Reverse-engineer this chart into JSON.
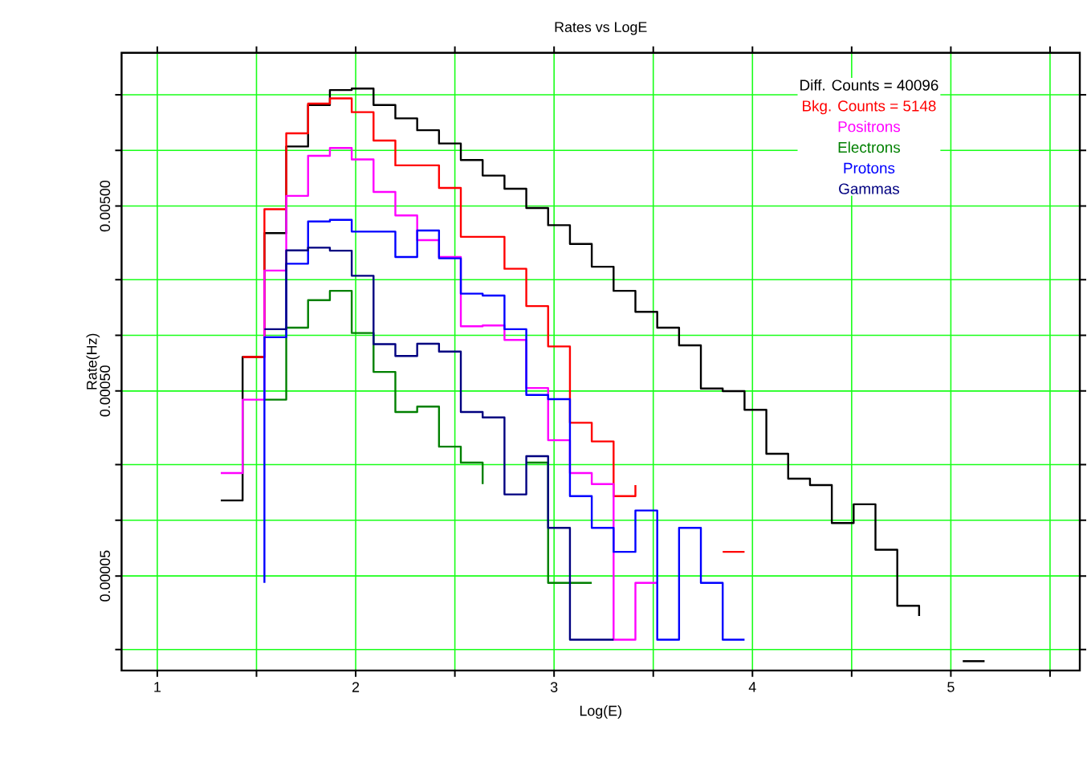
{
  "chart_data": {
    "type": "step",
    "title": "Rates vs LogE",
    "xlabel": "Log(E)",
    "ylabel": "Rate(Hz)",
    "log": "y",
    "grid": true,
    "legend": "top right",
    "xlim": [
      0.82,
      5.65
    ],
    "ylim": [
      1.54e-05,
      0.0337
    ],
    "xticks": [
      {
        "value": 1,
        "label": "1"
      },
      {
        "value": 1.5,
        "label": null
      },
      {
        "value": 2,
        "label": "2"
      },
      {
        "value": 2.5,
        "label": null
      },
      {
        "value": 3,
        "label": "3"
      },
      {
        "value": 3.5,
        "label": null
      },
      {
        "value": 4,
        "label": "4"
      },
      {
        "value": 4.5,
        "label": null
      },
      {
        "value": 5,
        "label": "5"
      },
      {
        "value": 5.5,
        "label": null
      }
    ],
    "yticks": [
      {
        "value": 2e-05,
        "label": null
      },
      {
        "value": 5e-05,
        "label": "0.00005"
      },
      {
        "value": 0.0001,
        "label": null
      },
      {
        "value": 0.0002,
        "label": null
      },
      {
        "value": 0.0005,
        "label": "0.00050"
      },
      {
        "value": 0.001,
        "label": null
      },
      {
        "value": 0.002,
        "label": null
      },
      {
        "value": 0.005,
        "label": "0.00500"
      },
      {
        "value": 0.01,
        "label": null
      },
      {
        "value": 0.02,
        "label": null
      }
    ],
    "series": [
      {
        "name": "Diff. Counts = 40096",
        "color": "#000000",
        "x": [
          1.32,
          1.43,
          1.54,
          1.65,
          1.76,
          1.87,
          1.98,
          2.09,
          2.2,
          2.31,
          2.42,
          2.53,
          2.64,
          2.75,
          2.86,
          2.97,
          3.08,
          3.19,
          3.3,
          3.41,
          3.52,
          3.63,
          3.74,
          3.85,
          3.96,
          4.07,
          4.18,
          4.29,
          4.4,
          4.51,
          4.62,
          4.73,
          4.84,
          4.95,
          5.06,
          5.17
        ],
        "values": [
          0.000128,
          0.000764,
          0.00357,
          0.0105,
          0.0176,
          0.0212,
          0.0216,
          0.0176,
          0.0149,
          0.01285,
          0.0109,
          0.00887,
          0.00731,
          0.0062,
          0.00488,
          0.00394,
          0.00312,
          0.00235,
          0.00174,
          0.00134,
          0.0011,
          0.000883,
          0.000516,
          0.000499,
          0.000396,
          0.000229,
          0.000168,
          0.000155,
          9.66e-05,
          0.000122,
          6.93e-05,
          3.45e-05,
          3.04e-05,
          null,
          1.73e-05,
          1.73e-05
        ]
      },
      {
        "name": "Bkg. Counts = 5148",
        "color": "#ff0000",
        "x": [
          1.43,
          1.54,
          1.65,
          1.76,
          1.87,
          1.98,
          2.09,
          2.2,
          2.31,
          2.42,
          2.53,
          2.64,
          2.75,
          2.86,
          2.97,
          3.08,
          3.19,
          3.3,
          3.41,
          3.52,
          3.63,
          3.74,
          3.85,
          3.96
        ],
        "values": [
          0.000764,
          0.00481,
          0.01236,
          0.0179,
          0.0191,
          0.0161,
          0.0113,
          0.0083,
          0.0083,
          0.00627,
          0.00341,
          0.00341,
          0.00229,
          0.00144,
          0.000871,
          0.000337,
          0.000267,
          0.000135,
          0.000155,
          null,
          null,
          null,
          6.75e-05,
          6.75e-05
        ]
      },
      {
        "name": "Positrons",
        "color": "#ff00ff",
        "x": [
          1.32,
          1.43,
          1.54,
          1.65,
          1.76,
          1.87,
          1.98,
          2.09,
          2.2,
          2.31,
          2.42,
          2.53,
          2.64,
          2.75,
          2.86,
          2.97,
          3.08,
          3.19,
          3.3,
          3.41,
          3.52
        ],
        "values": [
          0.00018,
          0.000449,
          0.00224,
          0.00568,
          0.00935,
          0.0103,
          0.00893,
          0.00596,
          0.00445,
          0.00327,
          0.00265,
          0.00112,
          0.00113,
          0.000944,
          0.000519,
          0.000271,
          0.00018,
          0.000157,
          2.26e-05,
          4.59e-05,
          4.59e-05
        ]
      },
      {
        "name": "Electrons",
        "color": "#008000",
        "x": [
          1.54,
          1.65,
          1.76,
          1.87,
          1.98,
          2.09,
          2.2,
          2.31,
          2.42,
          2.53,
          2.64,
          2.75,
          2.86,
          2.97,
          3.08,
          3.19
        ],
        "values": [
          0.000449,
          0.0011,
          0.00155,
          0.00174,
          0.00103,
          0.000634,
          0.000385,
          0.000412,
          0.00025,
          0.000205,
          0.000157,
          null,
          0.000205,
          4.59e-05,
          4.59e-05,
          4.59e-05
        ]
      },
      {
        "name": "Protons",
        "color": "#0000ff",
        "x": [
          1.54,
          1.54,
          1.65,
          1.76,
          1.87,
          1.98,
          2.09,
          2.2,
          2.31,
          2.42,
          2.53,
          2.64,
          2.75,
          2.86,
          2.97,
          3.08,
          3.19,
          3.3,
          3.41,
          3.52,
          3.63,
          3.74,
          3.85,
          3.96
        ],
        "values": [
          4.59e-05,
          0.000977,
          0.00244,
          0.00413,
          0.00421,
          0.00364,
          0.00364,
          0.00265,
          0.00369,
          0.00261,
          0.00168,
          0.00164,
          0.00108,
          0.000476,
          0.000452,
          0.000135,
          9.1e-05,
          6.75e-05,
          0.000113,
          2.26e-05,
          9.1e-05,
          4.59e-05,
          2.26e-05,
          2.26e-05
        ]
      },
      {
        "name": "Gammas",
        "color": "#000080",
        "x": [
          1.54,
          1.65,
          1.76,
          1.87,
          1.98,
          2.09,
          2.2,
          2.31,
          2.42,
          2.53,
          2.64,
          2.75,
          2.86,
          2.97,
          3.08,
          3.19,
          3.3
        ],
        "values": [
          0.00108,
          0.00288,
          0.00298,
          0.00287,
          0.0021,
          0.000896,
          0.000773,
          0.0009,
          0.000817,
          0.000385,
          0.00036,
          0.000138,
          0.000222,
          9.1e-05,
          2.26e-05,
          2.26e-05,
          2.26e-05
        ]
      }
    ]
  }
}
